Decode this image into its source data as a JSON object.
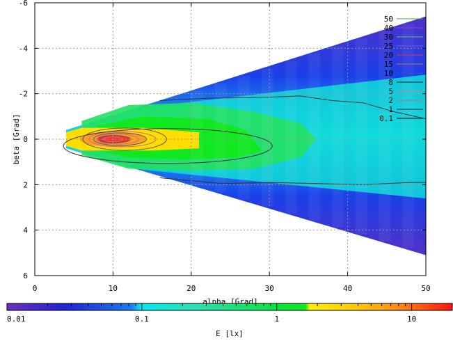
{
  "chart_data": {
    "type": "heatmap",
    "xlabel": "alpha [Grad]",
    "ylabel": "beta [Grad]",
    "colorbar_label": "E [lx]",
    "xlim": [
      0,
      50
    ],
    "ylim": [
      -6,
      6
    ],
    "y_inverted": true,
    "grid": true,
    "x_ticks": [
      0,
      10,
      20,
      30,
      40,
      50
    ],
    "y_ticks": [
      -6,
      -4,
      -2,
      0,
      2,
      4,
      6
    ],
    "colorbar_scale": "log",
    "colorbar_range": [
      0.01,
      20
    ],
    "colorbar_ticks": [
      {
        "value": 0.01,
        "label": "0.01"
      },
      {
        "value": 0.1,
        "label": "0.1"
      },
      {
        "value": 1,
        "label": "1"
      },
      {
        "value": 10,
        "label": "10"
      }
    ],
    "legend_position": "top-right",
    "contour_levels": [
      {
        "label": "50",
        "color": "#44aa44"
      },
      {
        "label": "40",
        "color": "#8844cc"
      },
      {
        "label": "30",
        "color": "#66bb66"
      },
      {
        "label": "25",
        "color": "#7755ee"
      },
      {
        "label": "20",
        "color": "#cc4444"
      },
      {
        "label": "15",
        "color": "#b08040"
      },
      {
        "label": "10",
        "color": "#3355aa"
      },
      {
        "label": "8",
        "color": "#222222"
      },
      {
        "label": "5",
        "color": "#cc8888"
      },
      {
        "label": "2",
        "color": "#cc6688"
      },
      {
        "label": "1",
        "color": "#333333"
      },
      {
        "label": "0.1",
        "color": "#000000"
      }
    ],
    "field_region": {
      "apex_alpha": 4,
      "edge_top": {
        "alpha": [
          4,
          50
        ],
        "beta": [
          -0.4,
          -5.4
        ]
      },
      "edge_bottom": {
        "alpha": [
          4,
          50
        ],
        "beta": [
          0.4,
          5.1
        ]
      }
    },
    "peak": {
      "alpha": 10,
      "beta": 0
    }
  },
  "colors": {
    "background": "#ffffff",
    "grid": "#999999"
  }
}
